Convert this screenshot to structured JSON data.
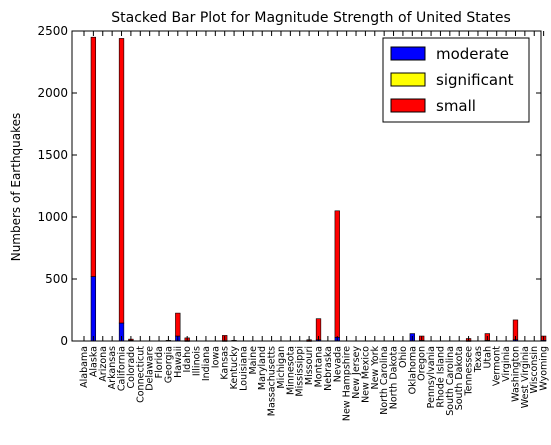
{
  "chart_data": {
    "type": "bar",
    "stacked": true,
    "title": "Stacked Bar Plot for Magnitude Strength of United States",
    "xlabel": "",
    "ylabel": "Numbers of Earthquakes",
    "ylim": [
      0,
      2500
    ],
    "yticks": [
      0,
      500,
      1000,
      1500,
      2000,
      2500
    ],
    "grid": false,
    "legend_position": "top-right",
    "categories": [
      "Alabama",
      "Alaska",
      "Arizona",
      "Arkansas",
      "California",
      "Colorado",
      "Connecticut",
      "Delaware",
      "Florida",
      "Georgia",
      "Hawaii",
      "Idaho",
      "Illinois",
      "Indiana",
      "Iowa",
      "Kansas",
      "Kentucky",
      "Louisiana",
      "Maine",
      "Maryland",
      "Massachusetts",
      "Michigan",
      "Minnesota",
      "Mississippi",
      "Missouri",
      "Montana",
      "Nebraska",
      "Nevada",
      "New Hampshire",
      "New Jersey",
      "New Mexico",
      "New York",
      "North Carolina",
      "North Dakota",
      "Ohio",
      "Oklahoma",
      "Oregon",
      "Pennsylvania",
      "Rhode Island",
      "South Carolina",
      "South Dakota",
      "Tennessee",
      "Texas",
      "Utah",
      "Vermont",
      "Virginia",
      "Washington",
      "West Virginia",
      "Wisconsin",
      "Wyoming"
    ],
    "series": [
      {
        "name": "moderate",
        "color": "#0000ff",
        "values": [
          0,
          520,
          0,
          0,
          145,
          5,
          0,
          0,
          0,
          0,
          40,
          3,
          0,
          0,
          0,
          3,
          0,
          0,
          0,
          0,
          0,
          0,
          0,
          0,
          3,
          10,
          0,
          30,
          0,
          0,
          0,
          0,
          0,
          0,
          0,
          60,
          5,
          0,
          0,
          0,
          0,
          3,
          0,
          5,
          0,
          0,
          10,
          0,
          0,
          5
        ]
      },
      {
        "name": "significant",
        "color": "#ffff00",
        "values": [
          0,
          0,
          0,
          0,
          0,
          0,
          0,
          0,
          0,
          0,
          0,
          0,
          0,
          0,
          0,
          0,
          0,
          0,
          0,
          0,
          0,
          0,
          0,
          0,
          0,
          0,
          0,
          0,
          0,
          0,
          0,
          0,
          0,
          0,
          0,
          0,
          0,
          0,
          0,
          0,
          0,
          0,
          0,
          0,
          0,
          0,
          0,
          0,
          0,
          0
        ]
      },
      {
        "name": "small",
        "color": "#ff0000",
        "values": [
          0,
          1930,
          0,
          0,
          2295,
          10,
          0,
          0,
          0,
          5,
          185,
          22,
          0,
          0,
          0,
          42,
          5,
          0,
          0,
          0,
          0,
          0,
          0,
          0,
          7,
          170,
          0,
          1020,
          0,
          0,
          0,
          0,
          0,
          0,
          0,
          0,
          35,
          0,
          0,
          0,
          0,
          17,
          0,
          55,
          0,
          0,
          160,
          0,
          0,
          35
        ]
      }
    ]
  }
}
